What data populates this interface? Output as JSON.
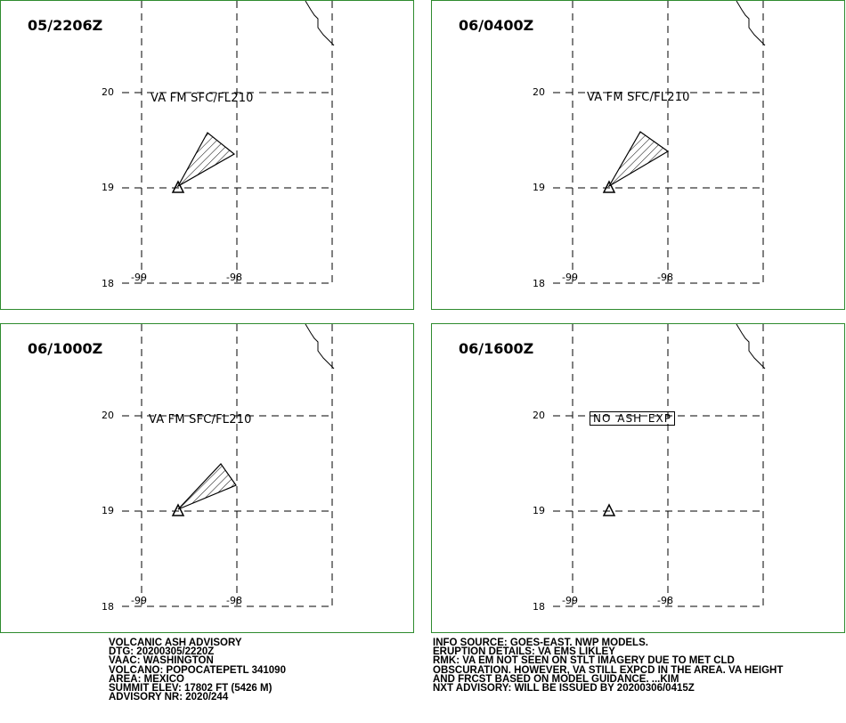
{
  "panels": [
    {
      "time": "05/2206Z",
      "label": "VA FM SFC/FL210",
      "status": "ash"
    },
    {
      "time": "06/0400Z",
      "label": "VA FM SFC/FL210",
      "status": "ash"
    },
    {
      "time": "06/1000Z",
      "label": "VA FM SFC/FL210",
      "status": "ash"
    },
    {
      "time": "06/1600Z",
      "label": "NO  ASH  EXP",
      "status": "no-ash"
    }
  ],
  "axes": {
    "lat_labels": [
      "20",
      "19",
      "18"
    ],
    "lon_labels": [
      "-99",
      "-98"
    ]
  },
  "advisory_left": [
    "VOLCANIC ASH ADVISORY",
    "DTG: 20200305/2220Z",
    "VAAC: WASHINGTON",
    "VOLCANO: POPOCATEPETL 341090",
    "AREA: MEXICO",
    "SUMMIT ELEV: 17802 FT (5426 M)",
    "ADVISORY NR: 2020/244"
  ],
  "advisory_right": [
    "INFO SOURCE: GOES-EAST. NWP MODELS.",
    "ERUPTION DETAILS: VA EMS LIKLEY",
    "RMK: VA EM NOT SEEN ON STLT IMAGERY DUE TO MET CLD",
    "OBSCURATION. HOWEVER, VA STILL EXPCD IN THE AREA. VA HEIGHT",
    "AND FRCST BASED ON MODEL GUIDANCE. ...KIM",
    "NXT ADVISORY: WILL BE ISSUED BY 20200306/0415Z"
  ],
  "colors": {
    "panel_border": "#2e8b2e",
    "lines": "#000000"
  }
}
